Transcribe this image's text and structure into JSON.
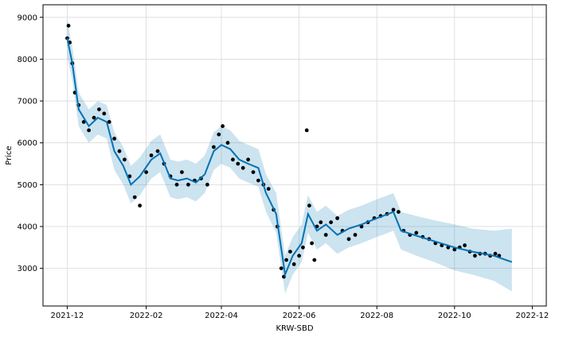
{
  "chart_data": {
    "type": "line",
    "xlabel": "KRW-SBD",
    "ylabel": "Price",
    "x_range": [
      "2021-11-12",
      "2022-12-12"
    ],
    "ylim": [
      2100,
      9300
    ],
    "x_ticks": [
      "2021-12",
      "2022-02",
      "2022-04",
      "2022-06",
      "2022-08",
      "2022-10",
      "2022-12"
    ],
    "y_ticks": [
      3000,
      4000,
      5000,
      6000,
      7000,
      8000,
      9000
    ],
    "grid": true,
    "colors": {
      "forecast_line": "#0072B2",
      "uncertainty_band": "#0072B2",
      "observations": "#000000",
      "grid": "#d9d9d9"
    },
    "forecast": {
      "x": [
        "2021-12-01",
        "2021-12-05",
        "2021-12-10",
        "2021-12-18",
        "2021-12-25",
        "2022-01-01",
        "2022-01-07",
        "2022-01-14",
        "2022-01-20",
        "2022-01-27",
        "2022-02-05",
        "2022-02-12",
        "2022-02-20",
        "2022-02-26",
        "2022-03-05",
        "2022-03-12",
        "2022-03-19",
        "2022-03-26",
        "2022-04-01",
        "2022-04-08",
        "2022-04-15",
        "2022-04-22",
        "2022-04-30",
        "2022-05-06",
        "2022-05-14",
        "2022-05-21",
        "2022-05-27",
        "2022-06-03",
        "2022-06-08",
        "2022-06-15",
        "2022-06-22",
        "2022-07-01",
        "2022-07-10",
        "2022-07-20",
        "2022-08-01",
        "2022-08-10",
        "2022-08-14",
        "2022-08-20",
        "2022-09-01",
        "2022-09-15",
        "2022-10-01",
        "2022-10-15",
        "2022-11-01",
        "2022-11-15"
      ],
      "yhat": [
        8500,
        7900,
        6800,
        6400,
        6600,
        6500,
        5800,
        5450,
        5000,
        5200,
        5600,
        5750,
        5150,
        5100,
        5150,
        5050,
        5250,
        5800,
        5950,
        5850,
        5600,
        5500,
        5400,
        4800,
        4300,
        2850,
        3300,
        3600,
        4300,
        3900,
        4050,
        3800,
        3950,
        4050,
        4200,
        4300,
        4350,
        3900,
        3780,
        3650,
        3500,
        3400,
        3300,
        3150
      ],
      "upper": [
        8950,
        8300,
        7200,
        6800,
        7000,
        6900,
        6250,
        5900,
        5450,
        5650,
        6050,
        6200,
        5600,
        5550,
        5600,
        5500,
        5700,
        6250,
        6400,
        6300,
        6050,
        5950,
        5850,
        5250,
        4800,
        3300,
        3750,
        4050,
        4750,
        4350,
        4500,
        4250,
        4400,
        4500,
        4650,
        4750,
        4800,
        4350,
        4250,
        4150,
        4050,
        3950,
        3900,
        3950
      ],
      "lower": [
        8050,
        7500,
        6400,
        6000,
        6200,
        6100,
        5350,
        5000,
        4550,
        4750,
        5150,
        5300,
        4700,
        4650,
        4700,
        4600,
        4800,
        5350,
        5500,
        5400,
        5150,
        5050,
        4950,
        4350,
        3850,
        2400,
        2850,
        3150,
        3850,
        3450,
        3600,
        3350,
        3500,
        3600,
        3750,
        3850,
        3900,
        3450,
        3300,
        3150,
        2950,
        2850,
        2700,
        2450
      ]
    },
    "observations": {
      "x": [
        "2021-12-01",
        "2021-12-02",
        "2021-12-03",
        "2021-12-05",
        "2021-12-07",
        "2021-12-10",
        "2021-12-14",
        "2021-12-18",
        "2021-12-22",
        "2021-12-26",
        "2021-12-30",
        "2022-01-03",
        "2022-01-07",
        "2022-01-11",
        "2022-01-15",
        "2022-01-19",
        "2022-01-23",
        "2022-01-27",
        "2022-02-01",
        "2022-02-05",
        "2022-02-10",
        "2022-02-15",
        "2022-02-20",
        "2022-02-25",
        "2022-03-01",
        "2022-03-06",
        "2022-03-11",
        "2022-03-16",
        "2022-03-21",
        "2022-03-26",
        "2022-03-30",
        "2022-04-02",
        "2022-04-06",
        "2022-04-10",
        "2022-04-14",
        "2022-04-18",
        "2022-04-22",
        "2022-04-26",
        "2022-04-30",
        "2022-05-04",
        "2022-05-08",
        "2022-05-12",
        "2022-05-15",
        "2022-05-18",
        "2022-05-20",
        "2022-05-22",
        "2022-05-25",
        "2022-05-28",
        "2022-06-01",
        "2022-06-04",
        "2022-06-07",
        "2022-06-09",
        "2022-06-11",
        "2022-06-13",
        "2022-06-15",
        "2022-06-18",
        "2022-06-22",
        "2022-06-26",
        "2022-07-01",
        "2022-07-05",
        "2022-07-10",
        "2022-07-15",
        "2022-07-20",
        "2022-07-25",
        "2022-07-30",
        "2022-08-04",
        "2022-08-09",
        "2022-08-14",
        "2022-08-18",
        "2022-08-22",
        "2022-08-27",
        "2022-09-01",
        "2022-09-06",
        "2022-09-11",
        "2022-09-16",
        "2022-09-21",
        "2022-09-26",
        "2022-10-01",
        "2022-10-05",
        "2022-10-09",
        "2022-10-13",
        "2022-10-17",
        "2022-10-21",
        "2022-10-25",
        "2022-10-29",
        "2022-11-02",
        "2022-11-05"
      ],
      "y": [
        8500,
        8800,
        8400,
        7900,
        7200,
        6900,
        6500,
        6300,
        6600,
        6800,
        6700,
        6500,
        6100,
        5800,
        5600,
        5200,
        4700,
        4500,
        5300,
        5700,
        5800,
        5500,
        5200,
        5000,
        5300,
        5000,
        5100,
        5150,
        5000,
        5900,
        6200,
        6400,
        6000,
        5600,
        5500,
        5400,
        5600,
        5300,
        5100,
        5000,
        4900,
        4400,
        4000,
        3000,
        2800,
        3200,
        3400,
        3100,
        3300,
        3500,
        6300,
        4500,
        3600,
        3200,
        4000,
        4100,
        3800,
        4100,
        4200,
        3900,
        3700,
        3800,
        4000,
        4100,
        4200,
        4250,
        4300,
        4400,
        4350,
        3900,
        3800,
        3850,
        3750,
        3700,
        3600,
        3550,
        3500,
        3450,
        3500,
        3550,
        3400,
        3300,
        3350,
        3350,
        3300,
        3350,
        3300
      ]
    }
  }
}
